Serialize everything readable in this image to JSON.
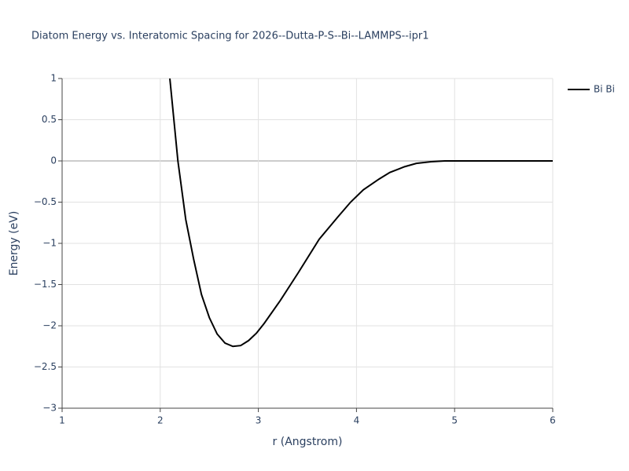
{
  "chart_data": {
    "type": "line",
    "title": "Diatom Energy vs. Interatomic Spacing for 2026--Dutta-P-S--Bi--LAMMPS--ipr1",
    "x_label": "r (Angstrom)",
    "y_label": "Energy (eV)",
    "x": [
      2.098,
      2.18,
      2.26,
      2.34,
      2.42,
      2.5,
      2.58,
      2.66,
      2.74,
      2.82,
      2.9,
      2.98,
      3.06,
      3.22,
      3.41,
      3.62,
      3.81,
      3.94,
      4.07,
      4.23,
      4.34,
      4.49,
      4.61,
      4.76,
      4.9,
      6.0
    ],
    "series": [
      {
        "name": "Bi Bi",
        "color": "#000000",
        "values": [
          1.0,
          0,
          -0.71,
          -1.19,
          -1.62,
          -1.9,
          -2.1,
          -2.21,
          -2.25,
          -2.24,
          -2.18,
          -2.09,
          -1.97,
          -1.7,
          -1.35,
          -0.95,
          -0.68,
          -0.5,
          -0.35,
          -0.22,
          -0.14,
          -0.07,
          -0.03,
          -0.01,
          0,
          0
        ]
      }
    ],
    "xlim": [
      1,
      6
    ],
    "xticks": [
      1,
      2,
      3,
      4,
      5,
      6
    ],
    "ylim": [
      -3,
      1
    ],
    "yticks": [
      {
        "value": -3,
        "label": "−3"
      },
      {
        "value": -2.5,
        "label": "−2.5"
      },
      {
        "value": -2,
        "label": "−2"
      },
      {
        "value": -1.5,
        "label": "−1.5"
      },
      {
        "value": -1,
        "label": "−1"
      },
      {
        "value": -0.5,
        "label": "−0.5"
      },
      0,
      0.5,
      1
    ],
    "grid": true,
    "legend": "right"
  }
}
